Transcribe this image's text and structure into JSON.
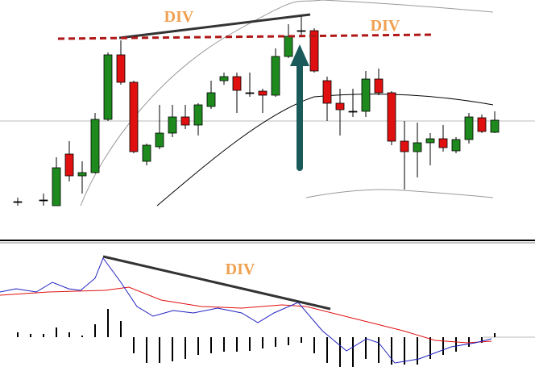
{
  "chart_data": [
    {
      "type": "candlestick",
      "up_color": "#1e8a1e",
      "down_color": "#e01010",
      "ylim": [
        0,
        260
      ],
      "annotations": [
        "DIV",
        "DIV"
      ],
      "open": [
        10,
        null,
        12,
        5,
        69,
        42,
        46,
        112,
        192,
        158,
        60,
        78,
        95,
        115,
        105,
        128,
        160,
        165,
        145,
        147,
        142,
        190,
        222,
        222,
        160,
        132,
        122,
        122,
        162,
        145,
        85,
        72,
        83,
        88,
        73,
        87,
        114,
        96
      ],
      "high": [
        15,
        null,
        20,
        65,
        85,
        60,
        120,
        195,
        210,
        160,
        82,
        130,
        130,
        130,
        132,
        160,
        170,
        170,
        170,
        150,
        200,
        230,
        240,
        225,
        165,
        150,
        150,
        172,
        175,
        147,
        110,
        108,
        95,
        105,
        90,
        120,
        118,
        122
      ],
      "low": [
        5,
        null,
        5,
        5,
        35,
        20,
        45,
        110,
        155,
        70,
        55,
        75,
        90,
        100,
        92,
        125,
        155,
        120,
        140,
        120,
        140,
        188,
        215,
        170,
        110,
        92,
        115,
        115,
        142,
        80,
        25,
        40,
        55,
        72,
        70,
        82,
        95,
        95
      ],
      "close": [
        10,
        null,
        12,
        52,
        42,
        46,
        112,
        192,
        158,
        72,
        80,
        95,
        115,
        105,
        130,
        145,
        165,
        148,
        145,
        142,
        190,
        215,
        222,
        172,
        132,
        124,
        122,
        162,
        145,
        85,
        72,
        83,
        88,
        77,
        87,
        115,
        97,
        111
      ]
    },
    {
      "type": "bar",
      "color": "#000000",
      "ylim": [
        -37,
        48
      ],
      "annotation": "DIV",
      "values": [
        6,
        4,
        4,
        12,
        6,
        2,
        16,
        35,
        20,
        -20,
        -32,
        -32,
        -30,
        -27,
        -22,
        -20,
        -18,
        -18,
        -17,
        -14,
        -12,
        -10,
        -7,
        -20,
        -32,
        -37,
        -37,
        -27,
        -32,
        -34,
        -34,
        -34,
        -27,
        -22,
        -18,
        -12,
        -7,
        5
      ]
    }
  ]
}
